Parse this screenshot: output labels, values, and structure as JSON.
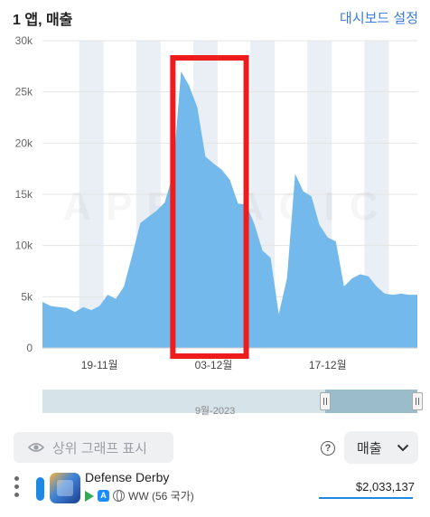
{
  "header": {
    "title": "1 앱, 매출",
    "dashboard_link": "대시보드 설정"
  },
  "chart_data": {
    "type": "area",
    "x": [
      "2023-11-12",
      "2023-11-13",
      "2023-11-14",
      "2023-11-15",
      "2023-11-16",
      "2023-11-17",
      "2023-11-18",
      "2023-11-19",
      "2023-11-20",
      "2023-11-21",
      "2023-11-22",
      "2023-11-23",
      "2023-11-24",
      "2023-11-25",
      "2023-11-26",
      "2023-11-27",
      "2023-11-28",
      "2023-11-29",
      "2023-11-30",
      "2023-12-01",
      "2023-12-02",
      "2023-12-03",
      "2023-12-04",
      "2023-12-05",
      "2023-12-06",
      "2023-12-07",
      "2023-12-08",
      "2023-12-09",
      "2023-12-10",
      "2023-12-11",
      "2023-12-12",
      "2023-12-13",
      "2023-12-14",
      "2023-12-15",
      "2023-12-16",
      "2023-12-17",
      "2023-12-18",
      "2023-12-19",
      "2023-12-20",
      "2023-12-21",
      "2023-12-22",
      "2023-12-23",
      "2023-12-24",
      "2023-12-25",
      "2023-12-26",
      "2023-12-27",
      "2023-12-28"
    ],
    "series": [
      {
        "values": [
          4500,
          4100,
          4000,
          3900,
          3500,
          4000,
          3700,
          4100,
          5200,
          4800,
          6000,
          9000,
          12200,
          12800,
          13400,
          14200,
          16900,
          27000,
          25600,
          23500,
          18700,
          18000,
          17400,
          16400,
          14100,
          14000,
          12100,
          9500,
          8800,
          3300,
          6800,
          17000,
          15300,
          14800,
          12000,
          10800,
          10400,
          6000,
          6800,
          7200,
          7000,
          6000,
          5300,
          5200,
          5300,
          5200,
          5200
        ]
      }
    ],
    "ylim": [
      0,
      30000
    ],
    "yticks": [
      "0",
      "5k",
      "10k",
      "15k",
      "20k",
      "25k",
      "30k"
    ],
    "xtick_labels": [
      {
        "date": "2023-11-19",
        "label": "19-11월"
      },
      {
        "date": "2023-12-03",
        "label": "03-12월"
      },
      {
        "date": "2023-12-17",
        "label": "17-12월"
      }
    ],
    "weekend_bands": [
      [
        "2023-11-17",
        "2023-11-19"
      ],
      [
        "2023-11-24",
        "2023-11-26"
      ],
      [
        "2023-12-01",
        "2023-12-03"
      ],
      [
        "2023-12-08",
        "2023-12-10"
      ],
      [
        "2023-12-15",
        "2023-12-17"
      ],
      [
        "2023-12-22",
        "2023-12-24"
      ]
    ],
    "highlight_range": [
      "2023-11-28",
      "2023-12-07"
    ],
    "grid": true,
    "watermark": "APPMAGIC",
    "fill_color": "#74b9ec",
    "band_color": "#e9eff5",
    "highlight_color": "#ee1c1c"
  },
  "slider": {
    "label": "9월-2023",
    "handle_label": "II"
  },
  "controls": {
    "compare_button": "상위 그래프 표시",
    "help_symbol": "?",
    "metric_select": "매출"
  },
  "app_row": {
    "name": "Defense Derby",
    "region": "WW (56 국가)",
    "revenue": "$2,033,137",
    "color": "#1e88e5"
  }
}
